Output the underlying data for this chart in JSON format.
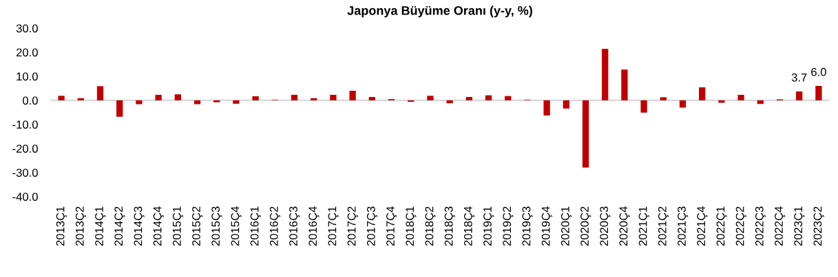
{
  "chart_data": {
    "type": "bar",
    "title": "Japonya Büyüme Oranı (y-y, %)",
    "categories": [
      "2013Ç1",
      "2013Ç2",
      "2014Ç1",
      "2014Ç2",
      "2014Ç3",
      "2014Ç4",
      "2015Ç1",
      "2015Ç2",
      "2015Ç3",
      "2015Ç4",
      "2016Ç1",
      "2016Ç2",
      "2016Ç3",
      "2016Ç4",
      "2017Ç1",
      "2017Ç2",
      "2017Ç3",
      "2017Ç4",
      "2018Ç1",
      "2018Ç2",
      "2018Ç3",
      "2018Ç4",
      "2019Ç1",
      "2019Ç2",
      "2019Ç3",
      "2019Ç4",
      "2020Ç1",
      "2020Ç2",
      "2020Ç3",
      "2020Ç4",
      "2021Ç1",
      "2021Ç2",
      "2021Ç3",
      "2021Ç4",
      "2022Ç1",
      "2022Ç2",
      "2022Ç3",
      "2022Ç4",
      "2023Ç1",
      "2023Ç2"
    ],
    "values": [
      1.9,
      0.9,
      5.9,
      -6.8,
      -1.6,
      2.3,
      2.5,
      -1.6,
      -0.8,
      -1.4,
      1.7,
      0.2,
      2.3,
      0.9,
      2.3,
      4.0,
      1.4,
      0.5,
      -0.6,
      1.9,
      -1.2,
      1.4,
      2.1,
      1.8,
      0.2,
      -6.3,
      -3.4,
      -27.9,
      21.4,
      12.8,
      -5.1,
      1.3,
      -3.0,
      5.4,
      -1.0,
      2.3,
      -1.5,
      0.4,
      3.7,
      6.0
    ],
    "value_labels": [
      null,
      null,
      null,
      null,
      null,
      null,
      null,
      null,
      null,
      null,
      null,
      null,
      null,
      null,
      null,
      null,
      null,
      null,
      null,
      null,
      null,
      null,
      null,
      null,
      null,
      null,
      null,
      null,
      null,
      null,
      null,
      null,
      null,
      null,
      null,
      null,
      null,
      null,
      "3.7",
      "6.0"
    ],
    "color": "#c00000",
    "ylim": [
      -40,
      30
    ],
    "yticks": [
      {
        "value": -40,
        "label": "-40.0"
      },
      {
        "value": -30,
        "label": "-30.0"
      },
      {
        "value": -20,
        "label": "-20.0"
      },
      {
        "value": -10,
        "label": "-10.0"
      },
      {
        "value": 0,
        "label": "0.0"
      },
      {
        "value": 10,
        "label": "10.0"
      },
      {
        "value": 20,
        "label": "20.0"
      },
      {
        "value": 30,
        "label": "30.0"
      }
    ]
  }
}
